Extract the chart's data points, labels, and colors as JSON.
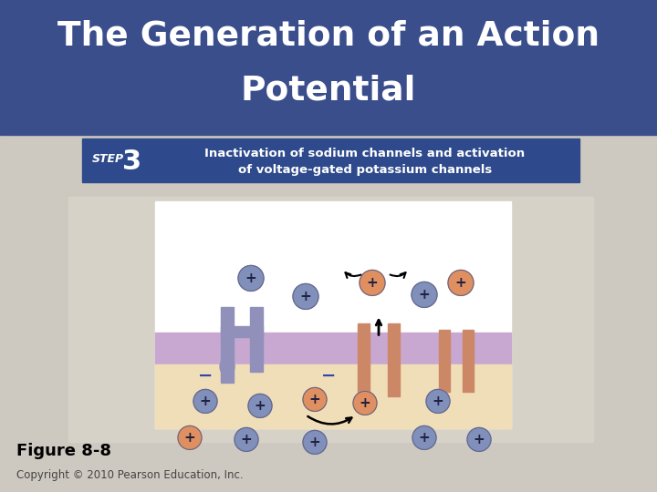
{
  "title_line1": "The Generation of an Action",
  "title_line2": "Potential",
  "title_bg_color": "#3A4E8C",
  "title_text_color": "#FFFFFF",
  "title_fontsize": 28,
  "body_bg_color": "#CEC9C0",
  "figure_caption": "Figure 8-8",
  "copyright_text": "Copyright © 2010 Pearson Education, Inc.",
  "step_bg_color": "#2E4A8C",
  "step_text": "STEP",
  "step_number": "3",
  "step_desc_line1": "Inactivation of sodium channels and activation",
  "step_desc_line2": "of voltage-gated potassium channels",
  "inner_box_bg": "#FFFFFF",
  "outer_box_bg": "#D6D2C8",
  "membrane_color": "#C8A8D0",
  "membrane_lower_color": "#F0DEB8",
  "ion_blue_color": "#8090BB",
  "ion_orange_color": "#E09060",
  "ion_symbol_color": "#222244",
  "channel_blue_color": "#9090BB",
  "channel_orange_color": "#CC8866"
}
